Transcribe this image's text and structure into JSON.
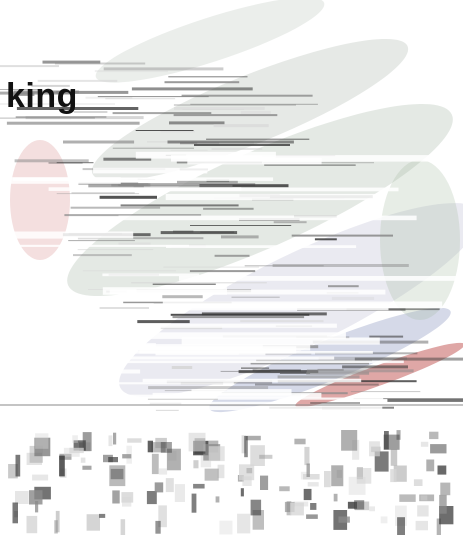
{
  "heading": {
    "text": "king"
  },
  "palette": {
    "background": "#ffffff",
    "text": "#111111",
    "stripe_dark": "#3a3a3a",
    "stripe_mid": "#8a8a8a",
    "stripe_light": "#d6d6d6",
    "accent_red": "#c0504d",
    "accent_blue": "#9aa6d8",
    "accent_green": "#9fb89a"
  },
  "icons": {
    "artwork": "abstract-swoosh-artwork",
    "strip": "glitched-lettering-strip"
  }
}
